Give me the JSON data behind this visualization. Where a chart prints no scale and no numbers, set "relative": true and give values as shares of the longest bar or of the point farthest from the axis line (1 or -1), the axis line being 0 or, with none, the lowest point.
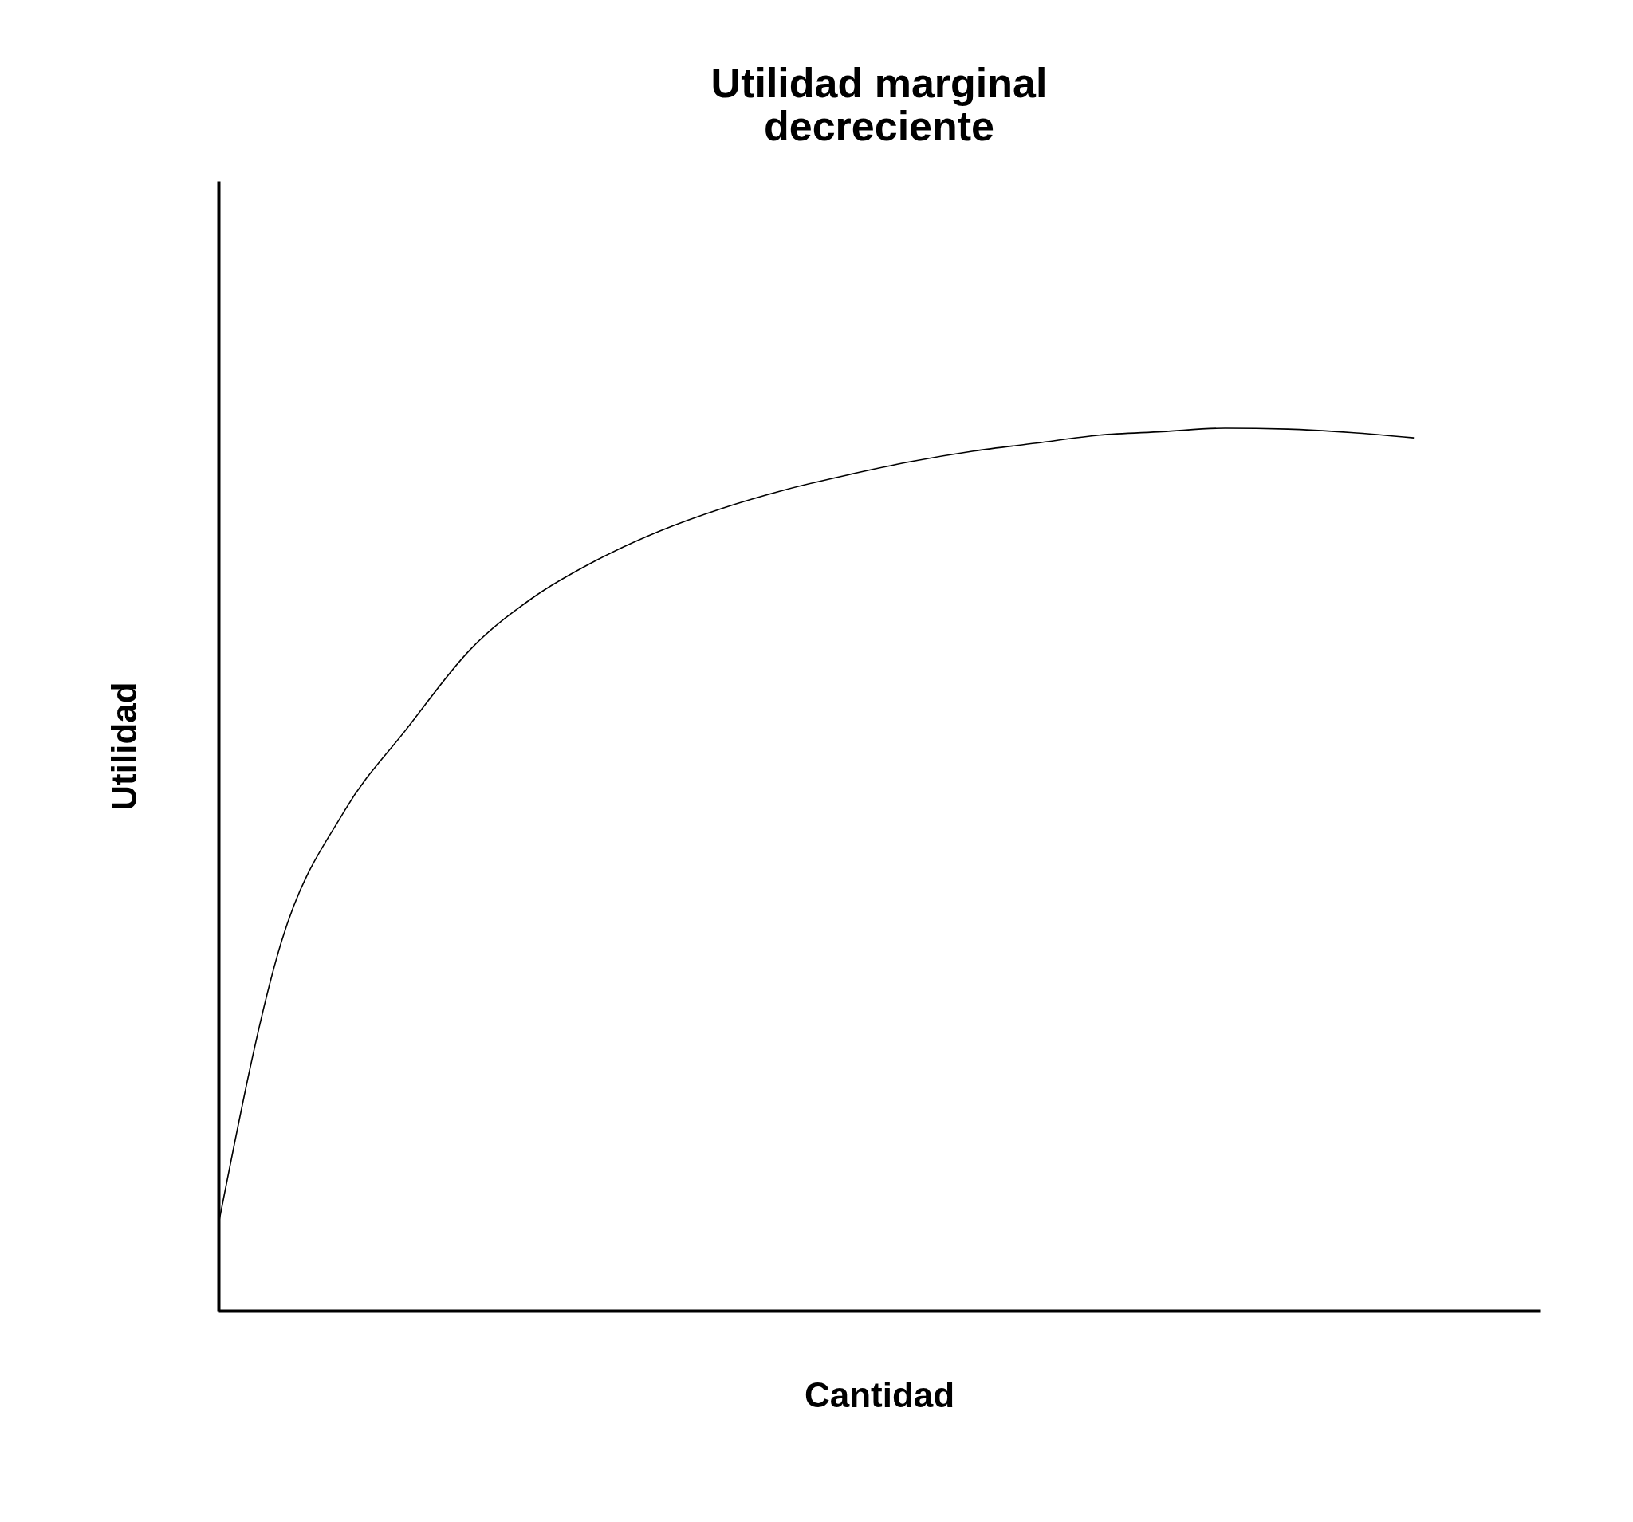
{
  "chart_data": {
    "type": "line",
    "title": "Utilidad marginal\ndecreciente",
    "xlabel": "Cantidad",
    "ylabel": "Utilidad",
    "relative": true,
    "grid": false,
    "tick_labels": false,
    "categories": [
      null,
      null,
      null,
      null,
      null,
      null,
      null,
      null,
      null,
      null,
      null,
      null,
      null,
      null,
      null,
      null,
      null,
      null,
      null,
      null,
      null,
      null
    ],
    "series": [
      {
        "color": "#000000",
        "values": [
          0.098,
          0.418,
          0.566,
          0.66,
          0.749,
          0.808,
          0.85,
          0.883,
          0.909,
          0.93,
          0.947,
          0.962,
          0.974,
          0.983,
          0.992,
          0.996,
          1.0,
          0.999,
          0.995,
          0.989,
          null,
          null
        ]
      }
    ]
  }
}
